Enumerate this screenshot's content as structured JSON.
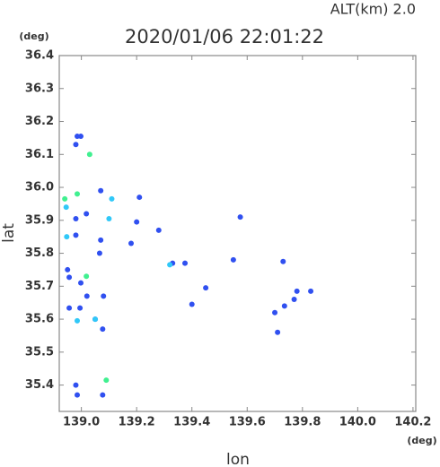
{
  "chart_data": {
    "type": "scatter",
    "title": "2020/01/06 22:01:22",
    "subtitle": "ALT(km) 2.0",
    "y_unit": "(deg)",
    "x_unit": "(deg)",
    "y_label": "lat",
    "x_label": "lon",
    "xlim": [
      138.92,
      140.21
    ],
    "ylim": [
      35.32,
      36.4
    ],
    "xticks": [
      {
        "value": 139,
        "label": "139.0"
      },
      139.2,
      139.4,
      139.6,
      139.8,
      {
        "value": 140,
        "label": "140.0"
      },
      140.2
    ],
    "yticks": [
      35.4,
      35.5,
      35.6,
      35.7,
      35.8,
      35.9,
      {
        "value": 36,
        "label": "36.0"
      },
      36.1,
      36.2,
      36.3,
      36.4
    ],
    "series": [
      {
        "color": "#3050f0",
        "x": [
          138.985,
          138.998,
          138.98,
          139.07,
          138.98,
          139.018,
          138.98,
          139.07,
          139.066,
          138.95,
          138.956,
          138.998,
          139.02,
          139.08,
          138.995,
          138.956,
          139.05,
          139.077,
          138.985,
          139.077,
          138.98,
          139.21,
          139.2,
          139.28,
          139.18,
          139.33,
          139.375,
          139.4,
          139.45,
          139.55,
          139.575,
          139.73,
          139.77,
          139.735,
          139.78,
          139.83,
          139.71,
          139.7
        ],
        "values": [
          36.155,
          36.155,
          36.13,
          35.99,
          35.905,
          35.92,
          35.855,
          35.84,
          35.8,
          35.75,
          35.727,
          35.71,
          35.67,
          35.67,
          35.634,
          35.634,
          35.6,
          35.57,
          35.37,
          35.37,
          35.4,
          35.97,
          35.895,
          35.87,
          35.83,
          35.77,
          35.77,
          35.645,
          35.695,
          35.78,
          35.91,
          35.775,
          35.66,
          35.64,
          35.685,
          35.685,
          35.56,
          35.62
        ]
      },
      {
        "color": "#30c8f8",
        "x": [
          138.945,
          139.1,
          139.11,
          138.947,
          138.985,
          139.05,
          139.32
        ],
        "values": [
          35.94,
          35.905,
          35.965,
          35.85,
          35.595,
          35.6,
          35.765
        ]
      },
      {
        "color": "#40f090",
        "x": [
          139.03,
          138.94,
          138.985,
          139.018,
          139.09
        ],
        "values": [
          36.1,
          35.965,
          35.98,
          35.73,
          35.415
        ]
      }
    ]
  }
}
